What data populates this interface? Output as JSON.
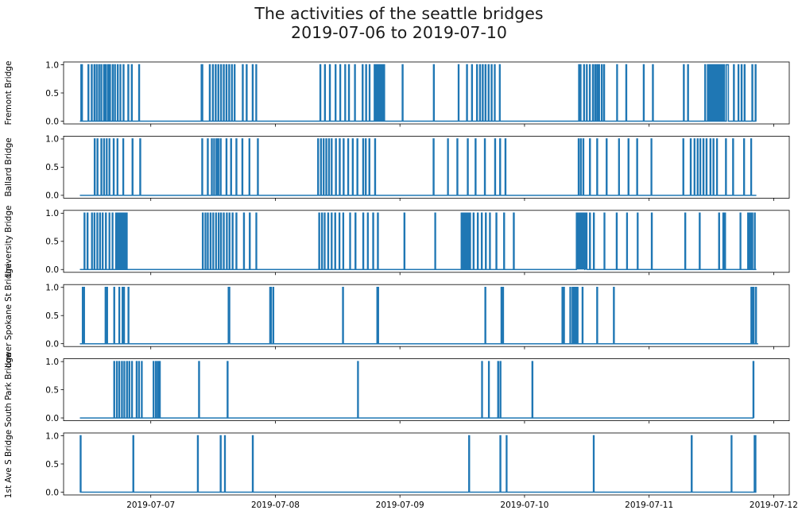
{
  "title": "The activities of the seattle bridges",
  "subtitle": "2019-07-06 to 2019-07-10",
  "chart_data": {
    "type": "line",
    "layout": "stacked-subplots-shared-x",
    "series_color": "#1f77b4",
    "x_tick_labels": [
      "2019-07-07",
      "2019-07-08",
      "2019-07-09",
      "2019-07-10",
      "2019-07-11",
      "2019-07-12"
    ],
    "x_tick_dates": [
      "2019-07-07",
      "2019-07-08",
      "2019-07-09",
      "2019-07-10",
      "2019-07-11",
      "2019-07-12"
    ],
    "xlim": [
      "2019-07-06T07:12",
      "2019-07-12T03:00"
    ],
    "ylim": [
      -0.05,
      1.05
    ],
    "y_tick_labels": [
      "0.0",
      "0.5",
      "1.0"
    ],
    "grid": false,
    "series": [
      {
        "name": "Fremont Bridge",
        "x_start": "2019-07-06T10:20",
        "x_end": "2019-07-11T20:40",
        "openings": [
          "2019-07-06T10:32",
          "2019-07-06T10:41",
          "2019-07-06T11:55",
          "2019-07-06T12:34",
          "2019-07-06T13:05",
          "2019-07-06T13:31",
          "2019-07-06T13:58",
          "2019-07-06T14:24",
          "2019-07-06T14:55",
          "2019-07-06T15:17",
          "2019-07-06T15:43",
          "2019-07-06T16:05",
          "2019-07-06T16:36",
          "2019-07-06T17:02",
          "2019-07-06T17:34",
          "2019-07-06T18:05",
          "2019-07-06T18:41",
          "2019-07-06T19:36",
          "2019-07-06T20:17",
          "2019-07-06T21:41",
          "2019-07-07T09:43",
          "2019-07-07T09:52",
          "2019-07-07T11:18",
          "2019-07-07T11:54",
          "2019-07-07T12:26",
          "2019-07-07T12:57",
          "2019-07-07T13:28",
          "2019-07-07T14:00",
          "2019-07-07T14:31",
          "2019-07-07T15:02",
          "2019-07-07T15:34",
          "2019-07-07T16:05",
          "2019-07-07T17:39",
          "2019-07-07T18:24",
          "2019-07-07T19:34",
          "2019-07-07T20:15",
          "2019-07-08T08:36",
          "2019-07-08T09:29",
          "2019-07-08T10:26",
          "2019-07-08T11:32",
          "2019-07-08T12:26",
          "2019-07-08T13:23",
          "2019-07-08T14:07",
          "2019-07-08T15:16",
          "2019-07-08T16:45",
          "2019-07-08T17:25",
          "2019-07-08T18:05",
          "2019-07-08T19:03",
          "2019-07-08T19:21",
          "2019-07-08T19:43",
          "2019-07-08T20:00",
          "2019-07-08T20:14",
          "2019-07-08T20:32",
          "2019-07-08T20:54",
          "2019-07-09T00:27",
          "2019-07-09T06:28",
          "2019-07-09T11:14",
          "2019-07-09T12:51",
          "2019-07-09T13:49",
          "2019-07-09T14:47",
          "2019-07-09T15:22",
          "2019-07-09T15:53",
          "2019-07-09T16:25",
          "2019-07-09T17:01",
          "2019-07-09T17:36",
          "2019-07-09T18:12",
          "2019-07-09T19:10",
          "2019-07-10T10:26",
          "2019-07-10T10:44",
          "2019-07-10T11:24",
          "2019-07-10T11:56",
          "2019-07-10T12:31",
          "2019-07-10T13:07",
          "2019-07-10T13:33",
          "2019-07-10T13:56",
          "2019-07-10T14:18",
          "2019-07-10T14:49",
          "2019-07-10T15:16",
          "2019-07-10T17:46",
          "2019-07-10T19:32",
          "2019-07-10T22:54",
          "2019-07-11T00:40",
          "2019-07-11T06:37",
          "2019-07-11T07:26",
          "2019-07-11T10:44",
          "2019-07-11T11:15",
          "2019-07-11T11:28",
          "2019-07-11T11:42",
          "2019-07-11T11:55",
          "2019-07-11T12:09",
          "2019-07-11T12:22",
          "2019-07-11T12:36",
          "2019-07-11T12:49",
          "2019-07-11T13:03",
          "2019-07-11T13:16",
          "2019-07-11T13:30",
          "2019-07-11T13:43",
          "2019-07-11T14:01",
          "2019-07-11T14:10",
          "2019-07-11T14:25",
          "2019-07-11T16:16",
          "2019-07-11T17:09",
          "2019-07-11T17:45",
          "2019-07-11T18:20",
          "2019-07-11T19:49",
          "2019-07-11T20:27"
        ],
        "sustained": [
          [
            "2019-07-11T14:52",
            "2019-07-11T15:16"
          ]
        ]
      },
      {
        "name": "Ballard Bridge",
        "x_start": "2019-07-06T10:20",
        "x_end": "2019-07-11T20:40",
        "openings": [
          "2019-07-06T13:08",
          "2019-07-06T13:40",
          "2019-07-06T14:25",
          "2019-07-06T14:56",
          "2019-07-06T15:27",
          "2019-07-06T15:58",
          "2019-07-06T16:47",
          "2019-07-06T17:31",
          "2019-07-06T18:38",
          "2019-07-06T20:25",
          "2019-07-06T21:54",
          "2019-07-07T09:51",
          "2019-07-07T10:55",
          "2019-07-07T11:42",
          "2019-07-07T12:08",
          "2019-07-07T12:35",
          "2019-07-07T12:57",
          "2019-07-07T13:24",
          "2019-07-07T14:31",
          "2019-07-07T15:24",
          "2019-07-07T16:26",
          "2019-07-07T17:35",
          "2019-07-07T18:56",
          "2019-07-07T20:34",
          "2019-07-08T08:10",
          "2019-07-08T08:43",
          "2019-07-08T09:14",
          "2019-07-08T09:45",
          "2019-07-08T10:16",
          "2019-07-08T10:47",
          "2019-07-08T11:36",
          "2019-07-08T12:20",
          "2019-07-08T13:05",
          "2019-07-08T13:58",
          "2019-07-08T14:51",
          "2019-07-08T15:44",
          "2019-07-08T16:51",
          "2019-07-08T17:21",
          "2019-07-08T18:03",
          "2019-07-08T19:09",
          "2019-07-09T06:25",
          "2019-07-09T09:11",
          "2019-07-09T11:00",
          "2019-07-09T13:00",
          "2019-07-09T14:30",
          "2019-07-09T16:18",
          "2019-07-09T18:16",
          "2019-07-09T19:14",
          "2019-07-09T20:16",
          "2019-07-10T10:22",
          "2019-07-10T10:47",
          "2019-07-10T11:16",
          "2019-07-10T12:32",
          "2019-07-10T13:56",
          "2019-07-10T15:45",
          "2019-07-10T18:08",
          "2019-07-10T19:58",
          "2019-07-10T21:38",
          "2019-07-11T00:23",
          "2019-07-11T06:32",
          "2019-07-11T07:57",
          "2019-07-11T08:41",
          "2019-07-11T09:17",
          "2019-07-11T09:48",
          "2019-07-11T10:24",
          "2019-07-11T11:00",
          "2019-07-11T11:45",
          "2019-07-11T12:20",
          "2019-07-11T13:01",
          "2019-07-11T14:44",
          "2019-07-11T16:07",
          "2019-07-11T18:14",
          "2019-07-11T19:36"
        ]
      },
      {
        "name": "University Bridge",
        "x_start": "2019-07-06T10:20",
        "x_end": "2019-07-11T20:40",
        "openings": [
          "2019-07-06T11:10",
          "2019-07-06T11:45",
          "2019-07-06T12:36",
          "2019-07-06T13:05",
          "2019-07-06T13:38",
          "2019-07-06T14:09",
          "2019-07-06T14:40",
          "2019-07-06T15:17",
          "2019-07-06T15:58",
          "2019-07-06T16:34",
          "2019-07-06T17:15",
          "2019-07-06T17:34",
          "2019-07-06T17:52",
          "2019-07-06T18:12",
          "2019-07-06T18:29",
          "2019-07-06T18:47",
          "2019-07-06T19:05",
          "2019-07-06T19:18",
          "2019-07-07T09:57",
          "2019-07-07T10:28",
          "2019-07-07T10:55",
          "2019-07-07T11:27",
          "2019-07-07T11:58",
          "2019-07-07T12:30",
          "2019-07-07T13:01",
          "2019-07-07T13:28",
          "2019-07-07T14:00",
          "2019-07-07T14:35",
          "2019-07-07T15:06",
          "2019-07-07T15:42",
          "2019-07-07T16:26",
          "2019-07-07T17:53",
          "2019-07-07T19:00",
          "2019-07-07T20:16",
          "2019-07-08T08:23",
          "2019-07-08T08:55",
          "2019-07-08T09:26",
          "2019-07-08T10:07",
          "2019-07-08T10:47",
          "2019-07-08T11:28",
          "2019-07-08T12:17",
          "2019-07-08T13:01",
          "2019-07-08T14:20",
          "2019-07-08T15:22",
          "2019-07-08T16:52",
          "2019-07-08T17:45",
          "2019-07-08T18:47",
          "2019-07-08T19:41",
          "2019-07-09T00:48",
          "2019-07-09T06:44",
          "2019-07-09T11:48",
          "2019-07-09T12:09",
          "2019-07-09T12:27",
          "2019-07-09T12:45",
          "2019-07-09T13:06",
          "2019-07-09T13:27",
          "2019-07-09T14:07",
          "2019-07-09T14:56",
          "2019-07-09T15:42",
          "2019-07-09T16:29",
          "2019-07-09T17:16",
          "2019-07-09T18:31",
          "2019-07-09T20:00",
          "2019-07-09T21:52",
          "2019-07-10T10:00",
          "2019-07-10T10:08",
          "2019-07-10T10:16",
          "2019-07-10T10:24",
          "2019-07-10T10:32",
          "2019-07-10T10:40",
          "2019-07-10T10:48",
          "2019-07-10T10:56",
          "2019-07-10T11:04",
          "2019-07-10T11:12",
          "2019-07-10T11:20",
          "2019-07-10T11:28",
          "2019-07-10T11:37",
          "2019-07-10T11:45",
          "2019-07-10T11:53",
          "2019-07-10T12:32",
          "2019-07-10T13:17",
          "2019-07-10T15:20",
          "2019-07-10T17:42",
          "2019-07-10T19:41",
          "2019-07-10T21:44",
          "2019-07-11T00:27",
          "2019-07-11T06:54",
          "2019-07-11T09:41",
          "2019-07-11T13:25",
          "2019-07-11T14:14",
          "2019-07-11T14:34",
          "2019-07-11T17:32",
          "2019-07-11T19:00",
          "2019-07-11T19:09",
          "2019-07-11T19:27",
          "2019-07-11T19:49",
          "2019-07-11T20:18"
        ]
      },
      {
        "name": "Lower Spokane St Bridge",
        "x_start": "2019-07-06T10:20",
        "x_end": "2019-07-11T21:00",
        "openings": [
          "2019-07-06T10:50",
          "2019-07-06T11:05",
          "2019-07-06T15:13",
          "2019-07-06T15:31",
          "2019-07-06T16:54",
          "2019-07-06T17:52",
          "2019-07-06T18:30",
          "2019-07-06T18:47",
          "2019-07-06T19:38",
          "2019-07-07T14:56",
          "2019-07-07T15:04",
          "2019-07-07T22:56",
          "2019-07-07T23:05",
          "2019-07-07T23:32",
          "2019-07-08T12:58",
          "2019-07-08T19:35",
          "2019-07-08T19:44",
          "2019-07-09T16:23",
          "2019-07-09T19:30",
          "2019-07-09T19:48",
          "2019-07-10T07:14",
          "2019-07-10T07:32",
          "2019-07-10T08:45",
          "2019-07-10T09:11",
          "2019-07-10T09:29",
          "2019-07-10T09:47",
          "2019-07-10T10:09",
          "2019-07-10T11:07",
          "2019-07-10T13:56",
          "2019-07-10T17:09",
          "2019-07-11T19:38",
          "2019-07-11T19:47",
          "2019-07-11T19:56",
          "2019-07-11T20:05",
          "2019-07-11T20:32"
        ]
      },
      {
        "name": "South Park Bridge",
        "x_start": "2019-07-06T10:20",
        "x_end": "2019-07-11T20:10",
        "openings": [
          "2019-07-06T16:54",
          "2019-07-06T17:25",
          "2019-07-06T17:52",
          "2019-07-06T18:23",
          "2019-07-06T18:50",
          "2019-07-06T19:21",
          "2019-07-06T19:48",
          "2019-07-06T20:19",
          "2019-07-06T21:13",
          "2019-07-06T21:40",
          "2019-07-06T22:12",
          "2019-07-07T00:28",
          "2019-07-07T00:55",
          "2019-07-07T01:18",
          "2019-07-07T01:40",
          "2019-07-07T09:14",
          "2019-07-07T14:44",
          "2019-07-08T15:51",
          "2019-07-09T15:45",
          "2019-07-09T17:04",
          "2019-07-09T18:51",
          "2019-07-09T19:18",
          "2019-07-10T01:27",
          "2019-07-11T20:02"
        ]
      },
      {
        "name": "1st Ave S Bridge",
        "x_start": "2019-07-06T10:20",
        "x_end": "2019-07-11T20:40",
        "openings": [
          "2019-07-06T10:25",
          "2019-07-06T20:34",
          "2019-07-07T09:00",
          "2019-07-07T13:24",
          "2019-07-07T14:13",
          "2019-07-07T19:35",
          "2019-07-09T13:16",
          "2019-07-09T19:17",
          "2019-07-09T20:29",
          "2019-07-10T13:16",
          "2019-07-11T08:08",
          "2019-07-11T15:49",
          "2019-07-11T20:16",
          "2019-07-11T20:25"
        ]
      }
    ]
  }
}
